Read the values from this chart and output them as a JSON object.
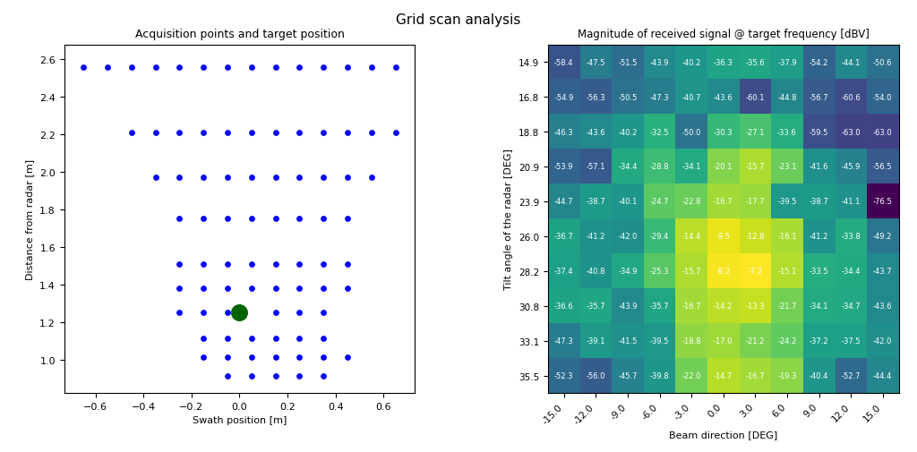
{
  "title": "Grid scan analysis",
  "scatter_title": "Acquisition points and target position",
  "scatter_xlabel": "Swath position [m]",
  "scatter_ylabel": "Distance from radar [m]",
  "target_point": [
    0.0,
    1.25
  ],
  "heatmap_title": "Magnitude of received signal @ target frequency [dBV]",
  "heatmap_xlabel": "Beam direction [DEG]",
  "heatmap_ylabel": "Tilt angle of the radar [DEG]",
  "heatmap_row_labels": [
    14.9,
    16.8,
    18.8,
    20.9,
    23.9,
    26.0,
    28.2,
    30.8,
    33.1,
    35.5
  ],
  "heatmap_col_labels": [
    -15.0,
    -12.0,
    -9.0,
    -6.0,
    -3.0,
    0.0,
    3.0,
    6.0,
    9.0,
    12.0,
    15.0
  ],
  "heatmap_data": [
    [
      -58.4,
      -47.5,
      -51.5,
      -43.9,
      -40.2,
      -36.3,
      -35.6,
      -37.9,
      -54.2,
      -44.1,
      -50.6
    ],
    [
      -54.9,
      -56.3,
      -50.5,
      -47.3,
      -40.7,
      -43.6,
      -60.1,
      -44.8,
      -56.7,
      -60.6,
      -54.0
    ],
    [
      -46.3,
      -43.6,
      -40.2,
      -32.5,
      -50.0,
      -30.3,
      -27.1,
      -33.6,
      -59.5,
      -63.0,
      -63.0
    ],
    [
      -53.9,
      -57.1,
      -34.4,
      -28.8,
      -34.1,
      -20.1,
      -15.7,
      -23.1,
      -41.6,
      -45.9,
      -56.5
    ],
    [
      -44.7,
      -38.7,
      -40.1,
      -24.7,
      -22.8,
      -16.7,
      -17.7,
      -39.5,
      -38.7,
      -41.1,
      -76.5
    ],
    [
      -36.7,
      -41.2,
      -42.0,
      -29.4,
      -14.4,
      -9.5,
      -12.8,
      -16.1,
      -41.2,
      -33.8,
      -49.2
    ],
    [
      -37.4,
      -40.8,
      -34.9,
      -25.3,
      -15.7,
      -8.2,
      -7.2,
      -15.1,
      -33.5,
      -34.4,
      -43.7
    ],
    [
      -36.6,
      -35.7,
      -43.9,
      -35.7,
      -16.7,
      -14.2,
      -13.3,
      -21.7,
      -34.1,
      -34.7,
      -43.6
    ],
    [
      -47.3,
      -39.1,
      -41.5,
      -39.5,
      -18.8,
      -17.0,
      -21.2,
      -24.2,
      -37.2,
      -37.5,
      -42.0
    ],
    [
      -52.3,
      -56.0,
      -45.7,
      -39.8,
      -22.0,
      -14.7,
      -16.7,
      -19.3,
      -40.4,
      -52.7,
      -44.4
    ]
  ],
  "colormap": "viridis",
  "scatter_color": "#0000ff",
  "target_color": "#006400",
  "scatter_dot_size": 15,
  "target_dot_size": 160,
  "scatter_xlim": [
    -0.73,
    0.73
  ],
  "scatter_ylim": [
    0.82,
    2.68
  ],
  "scatter_yticks": [
    1.0,
    1.2,
    1.4,
    1.6,
    1.8,
    2.0,
    2.2,
    2.4,
    2.6
  ],
  "scatter_xticks": [
    -0.6,
    -0.4,
    -0.2,
    0.0,
    0.2,
    0.4,
    0.6
  ]
}
